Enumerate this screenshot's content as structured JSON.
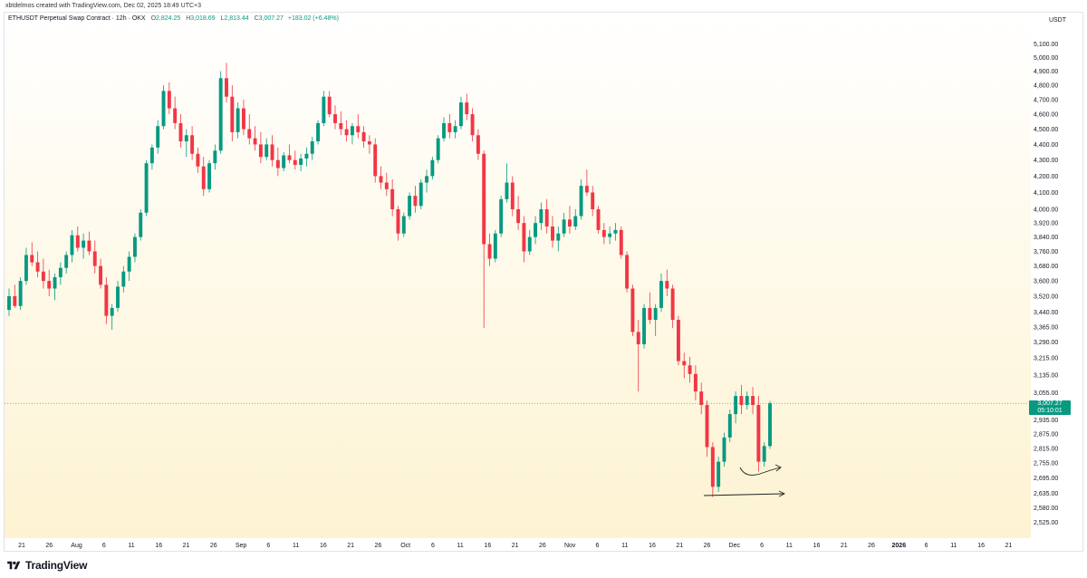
{
  "credit": "xbtdelmos created with TradingView.com, Dec 02, 2025 18:49 UTC+3",
  "symbol": {
    "title": "ETHUSDT Perpetual Swap Contract · 12h · OKX",
    "open_key": "O",
    "open": "2,824.25",
    "high_key": "H",
    "high": "3,018.69",
    "low_key": "L",
    "low": "2,813.44",
    "close_key": "C",
    "close": "3,007.27",
    "change": "+183.02 (+6.48%)"
  },
  "currency": "USDT",
  "last_price": {
    "price": "3,007.27",
    "countdown": "05:10:01"
  },
  "footer": {
    "brand": "TradingView",
    "logo_icon": "tradingview-logo-icon"
  },
  "colors": {
    "up": "#089981",
    "down": "#f23645",
    "background_top": "#ffffff",
    "background_bottom": "#fdf3d2"
  },
  "chart_data": {
    "type": "candlestick",
    "interval": "12h",
    "y_scale": "log",
    "ylim": [
      2540,
      5200
    ],
    "y_ticks": [
      "5,100.00",
      "5,000.00",
      "4,900.00",
      "4,800.00",
      "4,700.00",
      "4,600.00",
      "4,500.00",
      "4,400.00",
      "4,300.00",
      "4,200.00",
      "4,100.00",
      "4,000.00",
      "3,920.00",
      "3,840.00",
      "3,760.00",
      "3,680.00",
      "3,600.00",
      "3,520.00",
      "3,440.00",
      "3,365.00",
      "3,290.00",
      "3,215.00",
      "3,135.00",
      "3,055.00",
      "2,935.00",
      "2,875.00",
      "2,815.00",
      "2,755.00",
      "2,695.00",
      "2,635.00",
      "2,580.00",
      "2,525.00"
    ],
    "x_ticks": [
      "21",
      "26",
      "Aug",
      "6",
      "11",
      "16",
      "21",
      "26",
      "Sep",
      "6",
      "11",
      "16",
      "21",
      "26",
      "Oct",
      "6",
      "11",
      "16",
      "21",
      "26",
      "Nov",
      "6",
      "11",
      "16",
      "21",
      "26",
      "Dec",
      "6",
      "11",
      "16",
      "21",
      "26",
      "2026",
      "6",
      "11",
      "16",
      "21"
    ],
    "last_price": 3007.27,
    "candles": [
      [
        3450,
        3560,
        3420,
        3520
      ],
      [
        3520,
        3580,
        3460,
        3470
      ],
      [
        3470,
        3620,
        3450,
        3600
      ],
      [
        3600,
        3780,
        3580,
        3740
      ],
      [
        3740,
        3810,
        3680,
        3700
      ],
      [
        3700,
        3760,
        3620,
        3650
      ],
      [
        3650,
        3720,
        3560,
        3600
      ],
      [
        3600,
        3660,
        3520,
        3560
      ],
      [
        3560,
        3640,
        3500,
        3620
      ],
      [
        3620,
        3700,
        3580,
        3670
      ],
      [
        3670,
        3760,
        3640,
        3740
      ],
      [
        3740,
        3880,
        3700,
        3850
      ],
      [
        3850,
        3900,
        3760,
        3780
      ],
      [
        3780,
        3860,
        3720,
        3820
      ],
      [
        3820,
        3870,
        3740,
        3760
      ],
      [
        3760,
        3820,
        3640,
        3680
      ],
      [
        3680,
        3720,
        3560,
        3580
      ],
      [
        3580,
        3620,
        3380,
        3420
      ],
      [
        3420,
        3480,
        3350,
        3460
      ],
      [
        3460,
        3600,
        3440,
        3570
      ],
      [
        3570,
        3680,
        3540,
        3650
      ],
      [
        3650,
        3760,
        3600,
        3730
      ],
      [
        3730,
        3860,
        3700,
        3840
      ],
      [
        3840,
        4000,
        3820,
        3980
      ],
      [
        3980,
        4300,
        3960,
        4280
      ],
      [
        4280,
        4400,
        4240,
        4380
      ],
      [
        4380,
        4560,
        4340,
        4520
      ],
      [
        4520,
        4800,
        4500,
        4760
      ],
      [
        4760,
        4820,
        4600,
        4640
      ],
      [
        4640,
        4720,
        4500,
        4540
      ],
      [
        4540,
        4600,
        4380,
        4420
      ],
      [
        4420,
        4500,
        4320,
        4460
      ],
      [
        4460,
        4520,
        4300,
        4340
      ],
      [
        4340,
        4380,
        4220,
        4260
      ],
      [
        4260,
        4320,
        4080,
        4120
      ],
      [
        4120,
        4300,
        4100,
        4280
      ],
      [
        4280,
        4400,
        4240,
        4360
      ],
      [
        4360,
        4900,
        4340,
        4850
      ],
      [
        4850,
        4960,
        4680,
        4720
      ],
      [
        4720,
        4800,
        4420,
        4480
      ],
      [
        4480,
        4680,
        4440,
        4640
      ],
      [
        4640,
        4700,
        4460,
        4500
      ],
      [
        4500,
        4600,
        4400,
        4440
      ],
      [
        4440,
        4520,
        4360,
        4400
      ],
      [
        4400,
        4480,
        4280,
        4320
      ],
      [
        4320,
        4440,
        4300,
        4400
      ],
      [
        4400,
        4460,
        4260,
        4300
      ],
      [
        4300,
        4380,
        4200,
        4250
      ],
      [
        4250,
        4350,
        4230,
        4330
      ],
      [
        4330,
        4400,
        4280,
        4300
      ],
      [
        4300,
        4360,
        4240,
        4270
      ],
      [
        4270,
        4340,
        4230,
        4310
      ],
      [
        4310,
        4380,
        4260,
        4340
      ],
      [
        4340,
        4450,
        4300,
        4420
      ],
      [
        4420,
        4560,
        4400,
        4540
      ],
      [
        4540,
        4760,
        4520,
        4720
      ],
      [
        4720,
        4760,
        4580,
        4600
      ],
      [
        4600,
        4660,
        4500,
        4540
      ],
      [
        4540,
        4620,
        4460,
        4500
      ],
      [
        4500,
        4560,
        4420,
        4460
      ],
      [
        4460,
        4540,
        4400,
        4520
      ],
      [
        4520,
        4600,
        4440,
        4480
      ],
      [
        4480,
        4520,
        4380,
        4420
      ],
      [
        4420,
        4460,
        4340,
        4400
      ],
      [
        4400,
        4440,
        4160,
        4200
      ],
      [
        4200,
        4260,
        4120,
        4160
      ],
      [
        4160,
        4220,
        4080,
        4120
      ],
      [
        4120,
        4180,
        3960,
        4000
      ],
      [
        4000,
        4020,
        3820,
        3860
      ],
      [
        3860,
        3980,
        3840,
        3960
      ],
      [
        3960,
        4100,
        3940,
        4080
      ],
      [
        4080,
        4140,
        3980,
        4020
      ],
      [
        4020,
        4180,
        4000,
        4160
      ],
      [
        4160,
        4240,
        4100,
        4200
      ],
      [
        4200,
        4320,
        4180,
        4300
      ],
      [
        4300,
        4460,
        4280,
        4440
      ],
      [
        4440,
        4580,
        4420,
        4540
      ],
      [
        4540,
        4600,
        4440,
        4480
      ],
      [
        4480,
        4560,
        4440,
        4520
      ],
      [
        4520,
        4720,
        4500,
        4680
      ],
      [
        4680,
        4740,
        4560,
        4600
      ],
      [
        4600,
        4640,
        4420,
        4460
      ],
      [
        4460,
        4500,
        4300,
        4340
      ],
      [
        4340,
        4360,
        3360,
        3800
      ],
      [
        3800,
        3860,
        3680,
        3720
      ],
      [
        3720,
        3880,
        3700,
        3860
      ],
      [
        3860,
        4080,
        3840,
        4060
      ],
      [
        4060,
        4280,
        4040,
        4160
      ],
      [
        4160,
        4200,
        3960,
        4000
      ],
      [
        4000,
        4080,
        3880,
        3920
      ],
      [
        3920,
        3960,
        3700,
        3760
      ],
      [
        3760,
        3880,
        3740,
        3840
      ],
      [
        3840,
        3960,
        3800,
        3920
      ],
      [
        3920,
        4040,
        3880,
        4000
      ],
      [
        4000,
        4060,
        3860,
        3900
      ],
      [
        3900,
        3960,
        3780,
        3820
      ],
      [
        3820,
        3900,
        3760,
        3860
      ],
      [
        3860,
        3980,
        3840,
        3940
      ],
      [
        3940,
        4020,
        3860,
        3900
      ],
      [
        3900,
        4000,
        3880,
        3960
      ],
      [
        3960,
        4180,
        3940,
        4140
      ],
      [
        4140,
        4240,
        4080,
        4100
      ],
      [
        4100,
        4140,
        3960,
        4000
      ],
      [
        4000,
        4020,
        3860,
        3880
      ],
      [
        3880,
        3920,
        3800,
        3840
      ],
      [
        3840,
        3900,
        3800,
        3860
      ],
      [
        3860,
        3920,
        3820,
        3880
      ],
      [
        3880,
        3900,
        3720,
        3740
      ],
      [
        3740,
        3760,
        3540,
        3560
      ],
      [
        3560,
        3580,
        3320,
        3340
      ],
      [
        3340,
        3400,
        3060,
        3280
      ],
      [
        3280,
        3480,
        3260,
        3460
      ],
      [
        3460,
        3540,
        3380,
        3400
      ],
      [
        3400,
        3480,
        3320,
        3460
      ],
      [
        3460,
        3640,
        3440,
        3600
      ],
      [
        3600,
        3660,
        3520,
        3560
      ],
      [
        3560,
        3580,
        3360,
        3400
      ],
      [
        3400,
        3420,
        3180,
        3200
      ],
      [
        3200,
        3240,
        3120,
        3180
      ],
      [
        3180,
        3220,
        3100,
        3140
      ],
      [
        3140,
        3180,
        3020,
        3060
      ],
      [
        3060,
        3100,
        2960,
        3000
      ],
      [
        3000,
        3020,
        2780,
        2820
      ],
      [
        2820,
        2840,
        2620,
        2660
      ],
      [
        2660,
        2780,
        2640,
        2760
      ],
      [
        2760,
        2880,
        2740,
        2860
      ],
      [
        2860,
        2980,
        2840,
        2960
      ],
      [
        2960,
        3060,
        2920,
        3040
      ],
      [
        3040,
        3090,
        2960,
        3000
      ],
      [
        3000,
        3060,
        2980,
        3040
      ],
      [
        3040,
        3080,
        2960,
        3000
      ],
      [
        3000,
        3040,
        2720,
        2760
      ],
      [
        2760,
        2840,
        2740,
        2824
      ],
      [
        2824,
        3018,
        2813,
        3007
      ]
    ]
  }
}
